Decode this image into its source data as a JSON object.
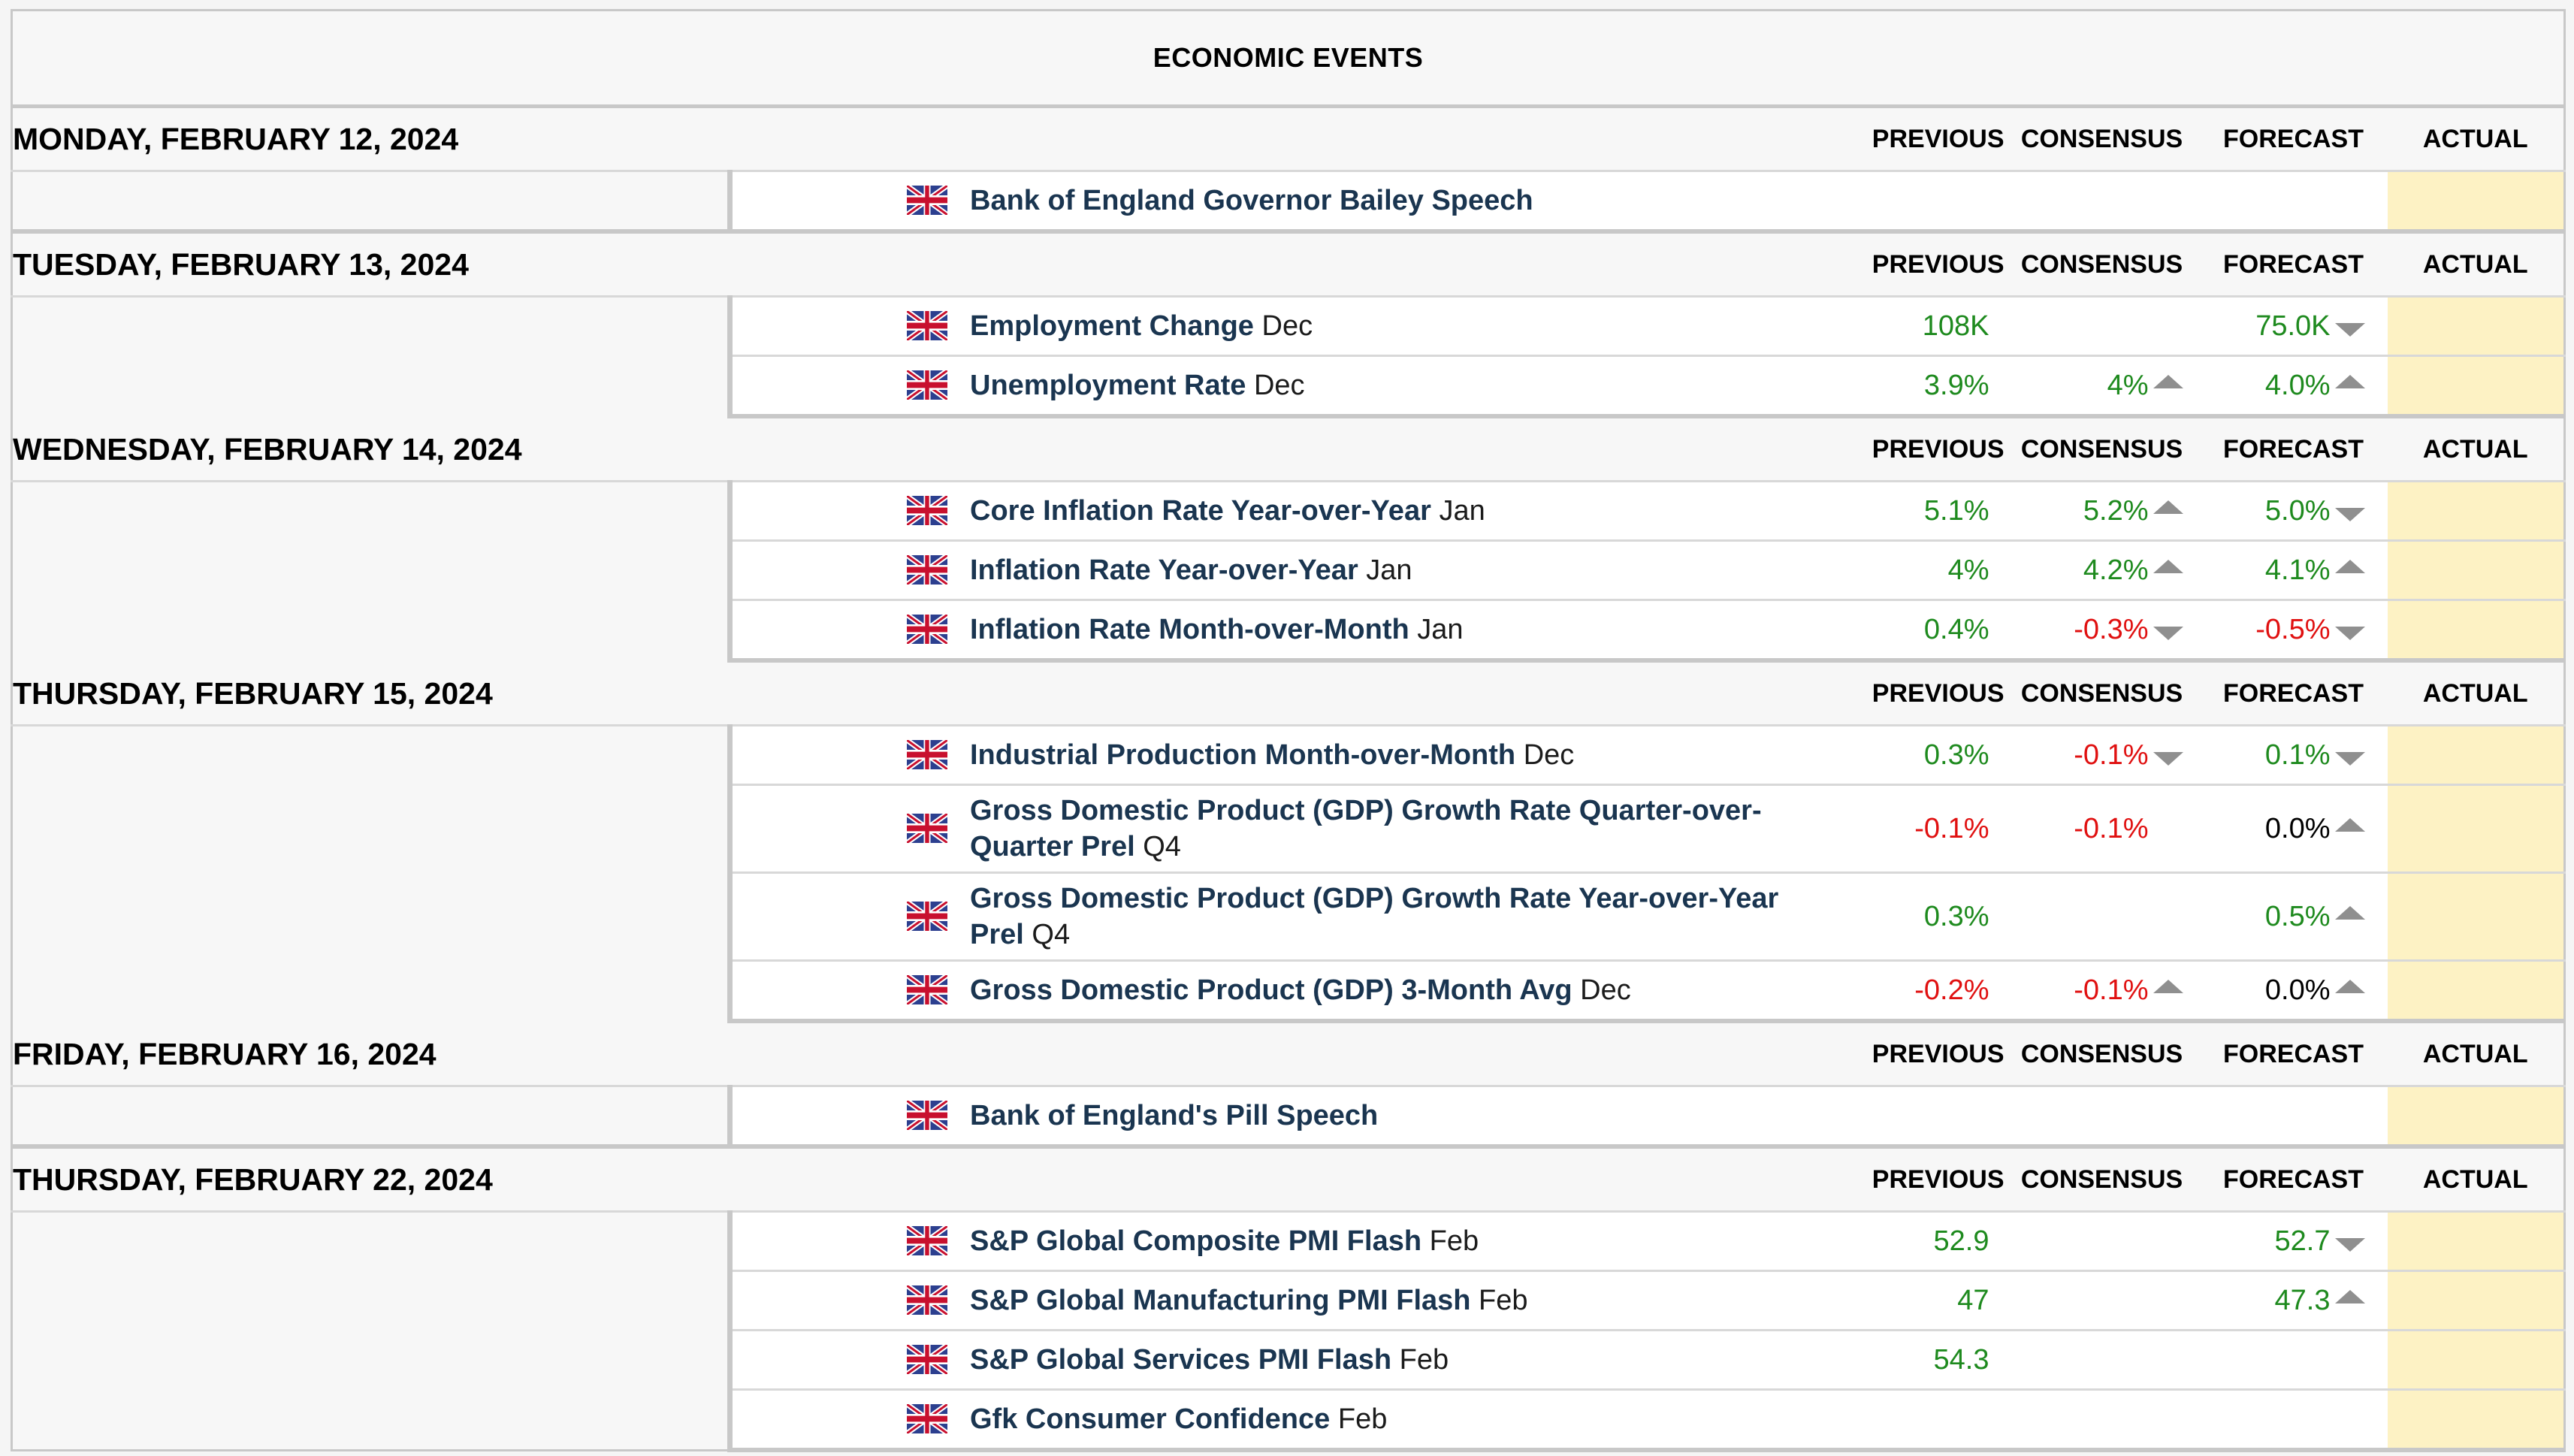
{
  "title": "ECONOMIC EVENTS",
  "columns": {
    "previous": "PREVIOUS",
    "consensus": "CONSENSUS",
    "forecast": "FORECAST",
    "actual": "ACTUAL"
  },
  "colors": {
    "positive": "#1e8a1e",
    "negative": "#e01010",
    "neutral": "#000000",
    "event_name": "#1a3550",
    "actual_bg": "#fdf2c4"
  },
  "days": [
    {
      "date": "MONDAY, FEBRUARY 12, 2024",
      "events": [
        {
          "name": "Bank of England Governor Bailey Speech",
          "period": "",
          "previous": "",
          "consensus": "",
          "forecast": "",
          "prev_tone": "neutral",
          "cons_tone": "neutral",
          "fore_tone": "neutral",
          "cons_arrow": "",
          "fore_arrow": "",
          "tall": false
        }
      ]
    },
    {
      "date": "TUESDAY, FEBRUARY 13, 2024",
      "events": [
        {
          "name": "Employment Change",
          "period": "Dec",
          "previous": "108K",
          "consensus": "",
          "forecast": "75.0K",
          "prev_tone": "positive",
          "cons_tone": "neutral",
          "fore_tone": "positive",
          "cons_arrow": "",
          "fore_arrow": "down",
          "tall": false
        },
        {
          "name": "Unemployment Rate",
          "period": "Dec",
          "previous": "3.9%",
          "consensus": "4%",
          "forecast": "4.0%",
          "prev_tone": "positive",
          "cons_tone": "positive",
          "fore_tone": "positive",
          "cons_arrow": "up",
          "fore_arrow": "up",
          "tall": false
        }
      ]
    },
    {
      "date": "WEDNESDAY, FEBRUARY 14, 2024",
      "events": [
        {
          "name": "Core Inflation Rate Year-over-Year",
          "period": "Jan",
          "previous": "5.1%",
          "consensus": "5.2%",
          "forecast": "5.0%",
          "prev_tone": "positive",
          "cons_tone": "positive",
          "fore_tone": "positive",
          "cons_arrow": "up",
          "fore_arrow": "down",
          "tall": false
        },
        {
          "name": "Inflation Rate Year-over-Year",
          "period": "Jan",
          "previous": "4%",
          "consensus": "4.2%",
          "forecast": "4.1%",
          "prev_tone": "positive",
          "cons_tone": "positive",
          "fore_tone": "positive",
          "cons_arrow": "up",
          "fore_arrow": "up",
          "tall": false
        },
        {
          "name": "Inflation Rate Month-over-Month",
          "period": "Jan",
          "previous": "0.4%",
          "consensus": "-0.3%",
          "forecast": "-0.5%",
          "prev_tone": "positive",
          "cons_tone": "negative",
          "fore_tone": "negative",
          "cons_arrow": "down",
          "fore_arrow": "down",
          "tall": false
        }
      ]
    },
    {
      "date": "THURSDAY, FEBRUARY 15, 2024",
      "events": [
        {
          "name": "Industrial Production Month-over-Month",
          "period": "Dec",
          "previous": "0.3%",
          "consensus": "-0.1%",
          "forecast": "0.1%",
          "prev_tone": "positive",
          "cons_tone": "negative",
          "fore_tone": "positive",
          "cons_arrow": "down",
          "fore_arrow": "down",
          "tall": false
        },
        {
          "name": "Gross Domestic Product (GDP) Growth Rate Quarter-over-Quarter Prel",
          "period": "Q4",
          "previous": "-0.1%",
          "consensus": "-0.1%",
          "forecast": "0.0%",
          "prev_tone": "negative",
          "cons_tone": "negative",
          "fore_tone": "neutral",
          "cons_arrow": "",
          "fore_arrow": "up",
          "tall": true
        },
        {
          "name": "Gross Domestic Product (GDP) Growth Rate Year-over-Year Prel",
          "period": "Q4",
          "previous": "0.3%",
          "consensus": "",
          "forecast": "0.5%",
          "prev_tone": "positive",
          "cons_tone": "neutral",
          "fore_tone": "positive",
          "cons_arrow": "",
          "fore_arrow": "up",
          "tall": true
        },
        {
          "name": "Gross Domestic Product (GDP) 3-Month Avg",
          "period": "Dec",
          "previous": "-0.2%",
          "consensus": "-0.1%",
          "forecast": "0.0%",
          "prev_tone": "negative",
          "cons_tone": "negative",
          "fore_tone": "neutral",
          "cons_arrow": "up",
          "fore_arrow": "up",
          "tall": false
        }
      ]
    },
    {
      "date": "FRIDAY, FEBRUARY 16, 2024",
      "events": [
        {
          "name": "Bank of England's Pill Speech",
          "period": "",
          "previous": "",
          "consensus": "",
          "forecast": "",
          "prev_tone": "neutral",
          "cons_tone": "neutral",
          "fore_tone": "neutral",
          "cons_arrow": "",
          "fore_arrow": "",
          "tall": false
        }
      ]
    },
    {
      "date": "THURSDAY, FEBRUARY 22, 2024",
      "events": [
        {
          "name": "S&P Global Composite PMI Flash",
          "period": "Feb",
          "previous": "52.9",
          "consensus": "",
          "forecast": "52.7",
          "prev_tone": "positive",
          "cons_tone": "neutral",
          "fore_tone": "positive",
          "cons_arrow": "",
          "fore_arrow": "down",
          "tall": false
        },
        {
          "name": "S&P Global Manufacturing PMI Flash",
          "period": "Feb",
          "previous": "47",
          "consensus": "",
          "forecast": "47.3",
          "prev_tone": "positive",
          "cons_tone": "neutral",
          "fore_tone": "positive",
          "cons_arrow": "",
          "fore_arrow": "up",
          "tall": false
        },
        {
          "name": "S&P Global Services PMI Flash",
          "period": "Feb",
          "previous": "54.3",
          "consensus": "",
          "forecast": "",
          "prev_tone": "positive",
          "cons_tone": "neutral",
          "fore_tone": "neutral",
          "cons_arrow": "",
          "fore_arrow": "",
          "tall": false
        },
        {
          "name": "Gfk Consumer Confidence",
          "period": "Feb",
          "previous": "",
          "consensus": "",
          "forecast": "",
          "prev_tone": "neutral",
          "cons_tone": "neutral",
          "fore_tone": "neutral",
          "cons_arrow": "",
          "fore_arrow": "",
          "tall": false
        }
      ]
    }
  ],
  "flag_icon": "uk-flag-icon"
}
